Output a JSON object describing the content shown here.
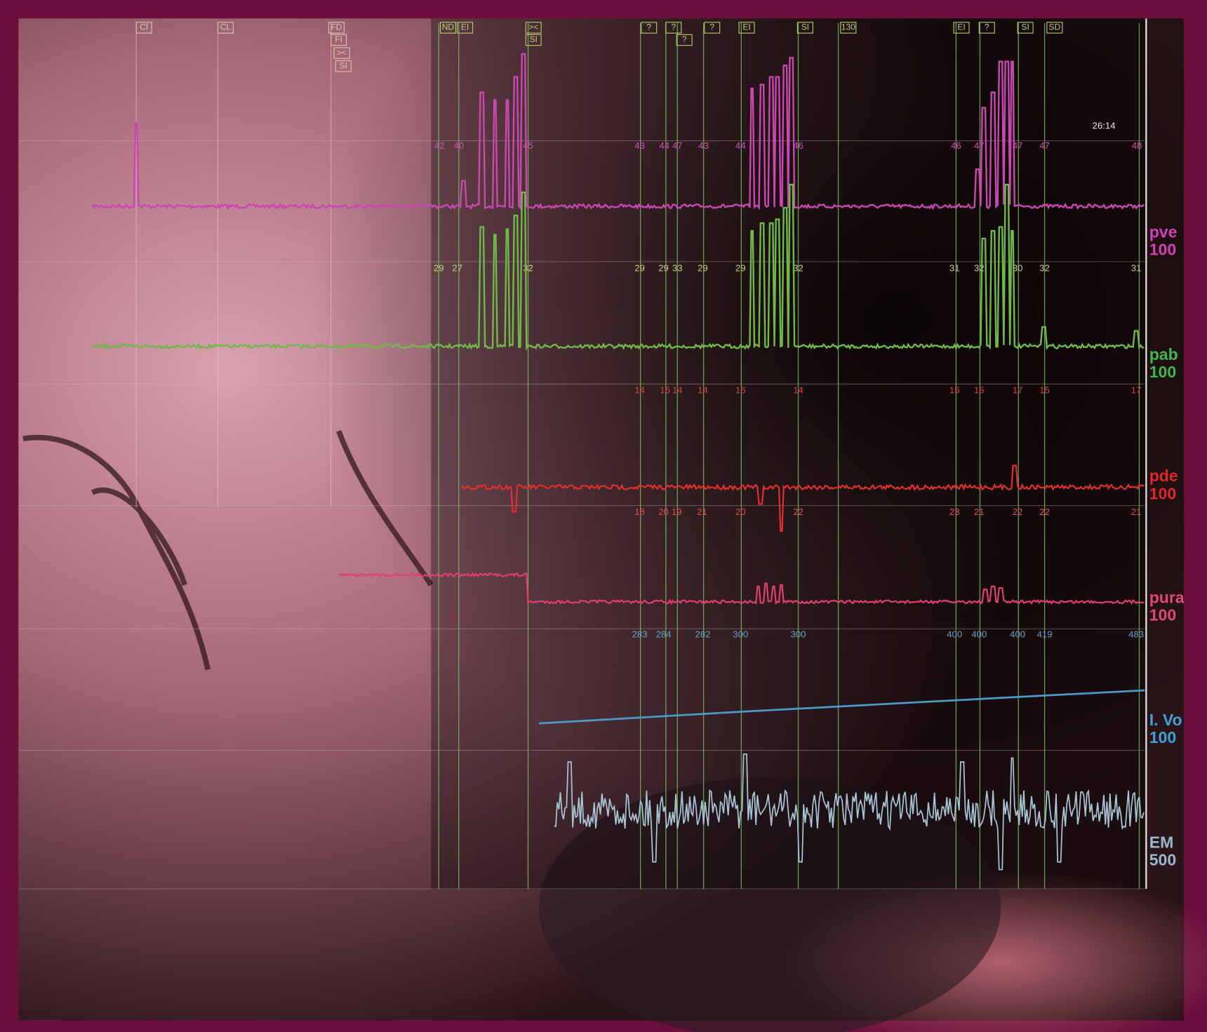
{
  "time": "26:14",
  "markers": [
    "CI",
    "CL",
    "FD",
    "FI",
    "><",
    "SI",
    "ND",
    "EI",
    "><",
    "SI",
    "?",
    "?",
    "?",
    "?",
    "EI",
    "SI",
    "130",
    "EI",
    "?",
    "SI",
    "SD"
  ],
  "channels": [
    {
      "name": "pve",
      "scale": "100"
    },
    {
      "name": "pab",
      "scale": "100"
    },
    {
      "name": "pde",
      "scale": "100"
    },
    {
      "name": "pura",
      "scale": "100"
    },
    {
      "name": "I. Vo",
      "scale": "100"
    },
    {
      "name": "EM",
      "scale": "500"
    }
  ],
  "value_rows": [
    [
      42,
      40,
      45,
      43,
      44,
      47,
      43,
      44,
      46,
      46,
      47,
      47,
      47,
      48
    ],
    [
      29,
      27,
      32,
      29,
      29,
      33,
      29,
      29,
      32,
      31,
      32,
      30,
      32,
      31
    ],
    [
      14,
      15,
      14,
      14,
      15,
      14,
      15,
      15,
      17,
      15,
      17
    ],
    [
      18,
      20,
      19,
      21,
      20,
      22,
      23,
      21,
      22,
      22,
      21
    ],
    [
      283,
      284,
      282,
      300,
      300,
      400,
      400,
      400,
      419,
      483
    ]
  ]
}
